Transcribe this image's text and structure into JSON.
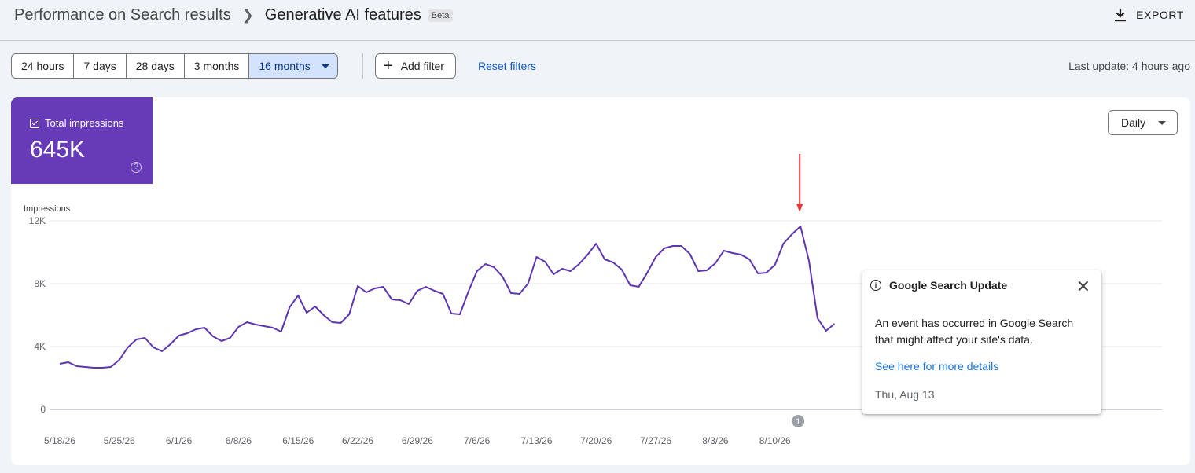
{
  "header": {
    "breadcrumb_parent": "Performance on Search results",
    "breadcrumb_current": "Generative AI features",
    "badge": "Beta",
    "export_label": "EXPORT"
  },
  "filters": {
    "ranges": [
      "24 hours",
      "7 days",
      "28 days",
      "3 months",
      "16 months"
    ],
    "selected": "16 months",
    "add_filter": "Add filter",
    "reset": "Reset filters",
    "last_update": "Last update: 4 hours ago"
  },
  "metric": {
    "label": "Total impressions",
    "value": "645K",
    "color": "#673ab7"
  },
  "granularity": "Daily",
  "popup": {
    "title": "Google Search Update",
    "body": "An event has occurred in Google Search that might affect your site's data.",
    "link": "See here for more details",
    "date": "Thu, Aug 13"
  },
  "event_marker": "1",
  "chart_data": {
    "type": "line",
    "ylabel": "Impressions",
    "ylim": [
      0,
      12000
    ],
    "yticks": [
      0,
      4000,
      8000,
      12000
    ],
    "ytick_labels": [
      "0",
      "4K",
      "8K",
      "12K"
    ],
    "xtick_labels": [
      "5/18/26",
      "5/25/26",
      "6/1/26",
      "6/8/26",
      "6/15/26",
      "6/22/26",
      "6/29/26",
      "7/6/26",
      "7/13/26",
      "7/20/26",
      "7/27/26",
      "8/3/26",
      "8/10/26"
    ],
    "start_date": "2026-05-18",
    "color": "#5e35b1",
    "series": [
      {
        "values": [
          2900,
          3000,
          2750,
          2700,
          2650,
          2650,
          2700,
          3150,
          3950,
          4450,
          4550,
          3950,
          3700,
          4150,
          4700,
          4850,
          5100,
          5200,
          4650,
          4350,
          4550,
          5250,
          5550,
          5400,
          5300,
          5200,
          4950,
          6500,
          7250,
          6150,
          6550,
          6000,
          5550,
          5500,
          6050,
          7850,
          7450,
          7700,
          7800,
          7000,
          6950,
          6700,
          7550,
          7800,
          7550,
          7350,
          6100,
          6050,
          7500,
          8800,
          9250,
          9050,
          8450,
          7400,
          7350,
          8000,
          9700,
          9400,
          8600,
          8950,
          8800,
          9250,
          9850,
          10550,
          9550,
          9350,
          8900,
          7900,
          7800,
          8700,
          9700,
          10250,
          10400,
          10400,
          9900,
          8800,
          8850,
          9300,
          10100,
          9950,
          9850,
          9550,
          8650,
          8700,
          9200,
          10550,
          11150,
          11650,
          9450,
          5800,
          5000,
          5450
        ]
      }
    ]
  }
}
